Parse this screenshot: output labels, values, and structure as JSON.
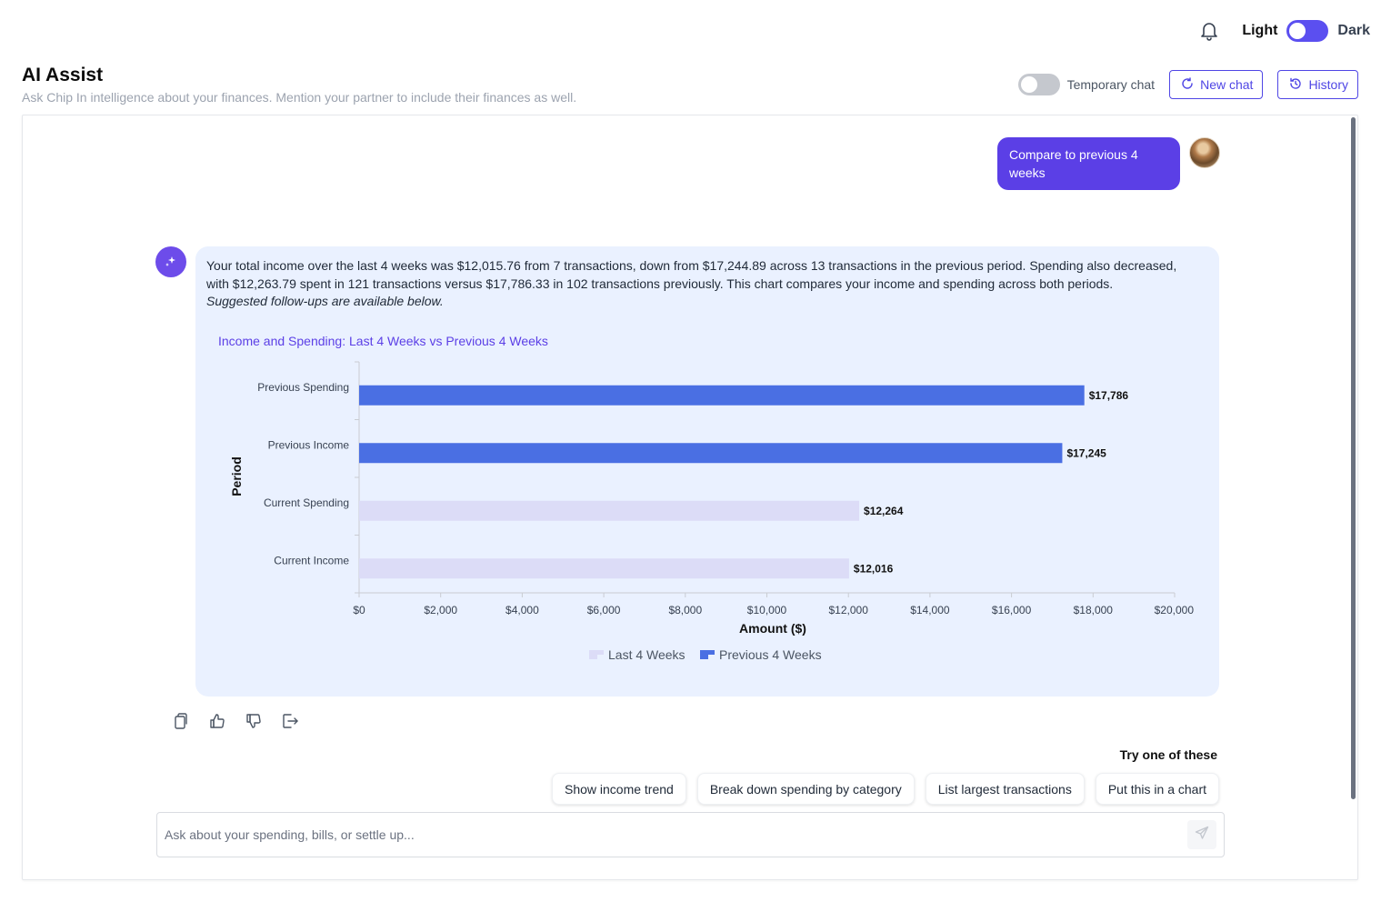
{
  "topbar": {
    "notifications_icon": "bell-icon",
    "theme_light_label": "Light",
    "theme_dark_label": "Dark"
  },
  "header": {
    "title": "AI Assist",
    "subtitle": "Ask Chip In intelligence about your finances. Mention your partner to include their finances as well.",
    "temporary_chat_label": "Temporary chat",
    "new_chat_label": "New chat",
    "history_label": "History"
  },
  "conversation": {
    "user_message": "Compare to previous 4 weeks",
    "ai_message": "Your total income over the last 4 weeks was $12,015.76 from 7 transactions, down from $17,244.89 across 13 transactions in the previous period. Spending also decreased, with $12,263.79 spent in 121 transactions versus $17,786.33 in 102 transactions previously. This chart compares your income and spending across both periods.",
    "ai_followup_note": "Suggested follow-ups are available below."
  },
  "chart_data": {
    "type": "bar",
    "orientation": "horizontal",
    "title": "Income and Spending: Last 4 Weeks vs Previous 4 Weeks",
    "xlabel": "Amount ($)",
    "ylabel": "Period",
    "xlim": [
      0,
      20000
    ],
    "x_ticks": [
      "$0",
      "$2,000",
      "$4,000",
      "$6,000",
      "$8,000",
      "$10,000",
      "$12,000",
      "$14,000",
      "$16,000",
      "$18,000",
      "$20,000"
    ],
    "categories": [
      "Previous Spending",
      "Previous Income",
      "Current Spending",
      "Current Income"
    ],
    "values": [
      17786,
      17245,
      12264,
      12016
    ],
    "value_labels": [
      "$17,786",
      "$17,245",
      "$12,264",
      "$12,016"
    ],
    "bar_series": [
      "Previous 4 Weeks",
      "Previous 4 Weeks",
      "Last 4 Weeks",
      "Last 4 Weeks"
    ],
    "legend": [
      {
        "name": "Last 4 Weeks",
        "color": "#dcdcf7"
      },
      {
        "name": "Previous 4 Weeks",
        "color": "#4a6fe3"
      }
    ],
    "legend_position": "bottom",
    "grid": false
  },
  "message_actions": {
    "copy_icon": "copy-icon",
    "like_icon": "thumbs-up-icon",
    "dislike_icon": "thumbs-down-icon",
    "share_icon": "share-icon"
  },
  "suggestions": {
    "heading": "Try one of these",
    "chips": [
      "Show income trend",
      "Break down spending by category",
      "List largest transactions",
      "Put this in a chart"
    ]
  },
  "composer": {
    "placeholder": "Ask about your spending, bills, or settle up...",
    "value": "",
    "send_icon": "send-icon"
  },
  "colors": {
    "accent": "#5b3fe6",
    "ai_bubble_bg": "#eaf1ff",
    "bar_previous": "#4a6fe3",
    "bar_current": "#dcdcf7"
  }
}
